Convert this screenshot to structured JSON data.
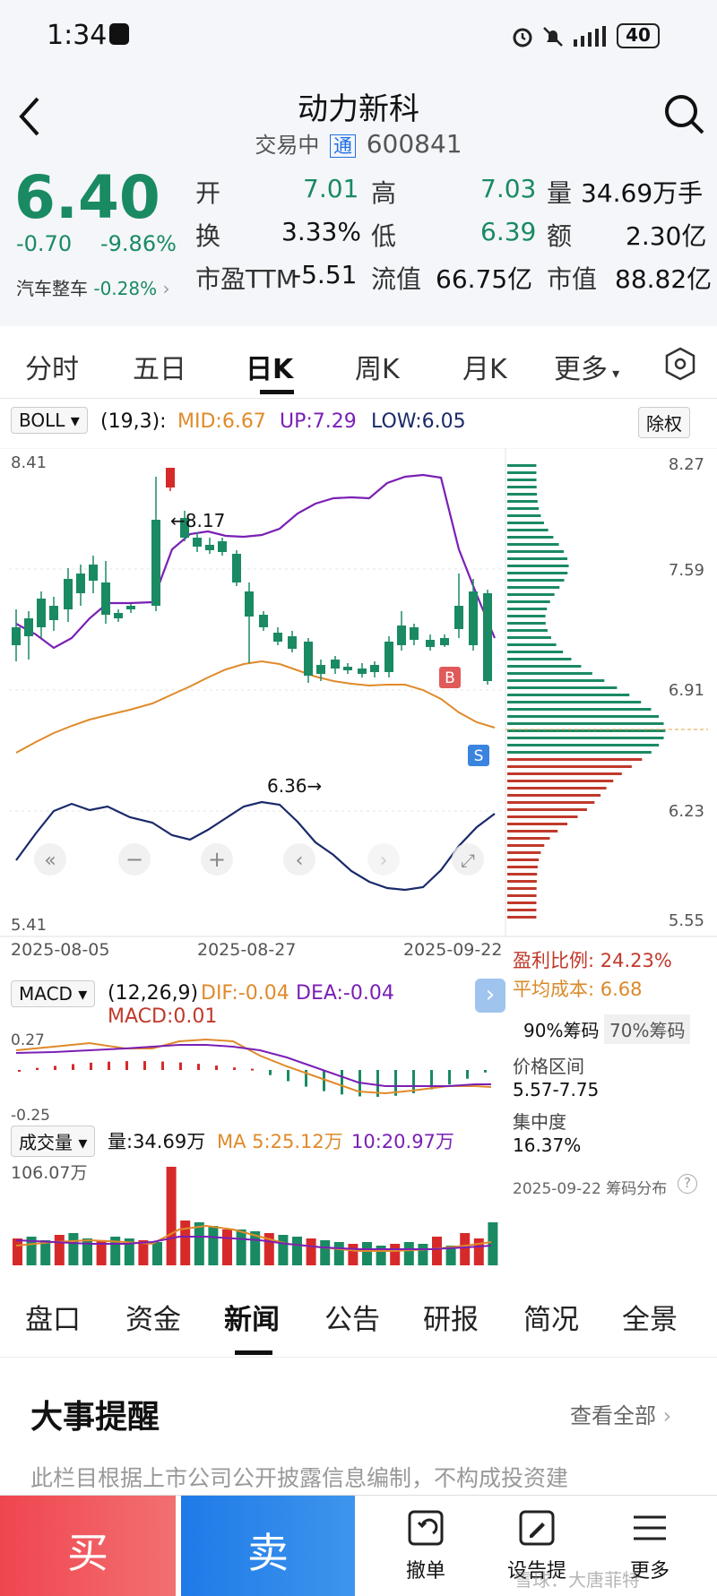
{
  "status_bar": {
    "time": "1:34",
    "battery": "40"
  },
  "header": {
    "title": "动力新科",
    "trading_status": "交易中",
    "tong_badge": "通",
    "code": "600841"
  },
  "quote": {
    "price": "6.40",
    "change": "-0.70",
    "change_pct": "-9.86%",
    "sector_name": "汽车整车",
    "sector_change": "-0.28%",
    "open_label": "开",
    "open": "7.01",
    "high_label": "高",
    "high": "7.03",
    "volume_label": "量",
    "volume": "34.69万手",
    "turnover_label": "换",
    "turnover": "3.33%",
    "low_label": "低",
    "low": "6.39",
    "amount_label": "额",
    "amount": "2.30亿",
    "pe_label": "市盈TTM",
    "pe": "-5.51",
    "float_cap_label": "流值",
    "float_cap": "66.75亿",
    "market_cap_label": "市值",
    "market_cap": "88.82亿"
  },
  "chart_tabs": [
    "分时",
    "五日",
    "日K",
    "周K",
    "月K",
    "更多"
  ],
  "boll": {
    "label": "BOLL",
    "params": "(19,3):",
    "mid": "MID:6.67",
    "up": "UP:7.29",
    "low": "LOW:6.05",
    "adjust": "除权"
  },
  "price_axis": {
    "left_top": "8.41",
    "left_bottom": "5.41",
    "right_ticks": [
      "8.27",
      "7.59",
      "6.91",
      "6.23",
      "5.55"
    ]
  },
  "annotations": {
    "high_mark": "←8.17",
    "low_mark": "6.36→",
    "buy_marker": "B",
    "sell_marker": "S"
  },
  "date_axis": [
    "2025-08-05",
    "2025-08-27",
    "2025-09-22"
  ],
  "chips": {
    "profit_ratio": "盈利比例: 24.23%",
    "avg_cost": "平均成本: 6.68",
    "tab_90": "90%筹码",
    "tab_70": "70%筹码",
    "range_label": "价格区间",
    "range": "5.57-7.75",
    "conc_label": "集中度",
    "conc": "16.37%",
    "footer": "2025-09-22 筹码分布"
  },
  "macd": {
    "label": "MACD",
    "params": "(12,26,9)",
    "dif": "DIF:-0.04",
    "dea": "DEA:-0.04",
    "macd": "MACD:0.01",
    "top": "0.27",
    "bottom": "-0.25"
  },
  "volume_panel": {
    "label": "成交量",
    "vol": "量:34.69万",
    "ma5": "MA 5:25.12万",
    "ma10": "10:20.97万",
    "max": "106.07万"
  },
  "bottom_tabs": [
    "盘口",
    "资金",
    "新闻",
    "公告",
    "研报",
    "简况",
    "全景"
  ],
  "events": {
    "title": "大事提醒",
    "view_all": "查看全部",
    "notice": "此栏目根据上市公司公开披露信息编制，不构成投资建"
  },
  "actions": {
    "buy": "买",
    "sell": "卖",
    "cancel": "撤单",
    "alert": "设告提",
    "more": "更多",
    "watermark": "雪球：大唐菲特"
  },
  "colors": {
    "up": "#d62a2a",
    "down": "#1a8a62",
    "accent_blue": "#1e6fe0"
  }
}
